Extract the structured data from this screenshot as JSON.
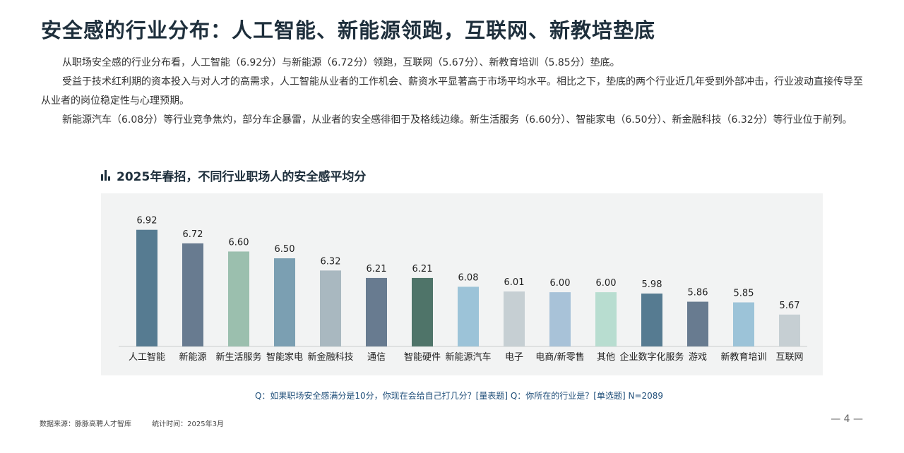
{
  "title": "安全感的行业分布：人工智能、新能源领跑，互联网、新教培垫底",
  "paragraphs": [
    "从职场安全感的行业分布看，人工智能（6.92分）与新能源（6.72分）领跑，互联网（5.67分）、新教育培训（5.85分）垫底。",
    "受益于技术红利期的资本投入与对人才的高需求，人工智能从业者的工作机会、薪资水平显著高于市场平均水平。相比之下，垫底的两个行业近几年受到外部冲击，行业波动直接传导至从业者的岗位稳定性与心理预期。",
    "新能源汽车（6.08分）等行业竞争焦灼，部分车企暴雷，从业者的安全感徘徊于及格线边缘。新生活服务（6.60分）、智能家电（6.50分）、新金融科技（6.32分）等行业位于前列。"
  ],
  "chart_title": "2025年春招，不同行业职场人的安全感平均分",
  "question": "Q：如果职场安全感满分是10分，你现在会给自己打几分？[量表题]     Q：你所在的行业是？[单选题]     N=2089",
  "footer": {
    "source": "数据来源：脉脉高聘人才智库",
    "time": "统计时间：2025年3月"
  },
  "page_number": "— 4 —",
  "chart_data": {
    "type": "bar",
    "title": "2025年春招，不同行业职场人的安全感平均分",
    "categories": [
      "人工智能",
      "新能源",
      "新生活服务",
      "智能家电",
      "新金融科技",
      "通信",
      "智能硬件",
      "新能源汽车",
      "电子",
      "电商/新零售",
      "其他",
      "企业数字化服务",
      "游戏",
      "新教育培训",
      "互联网"
    ],
    "values": [
      6.92,
      6.72,
      6.6,
      6.5,
      6.32,
      6.21,
      6.21,
      6.08,
      6.01,
      6.0,
      6.0,
      5.98,
      5.86,
      5.85,
      5.67
    ],
    "value_labels": [
      "6.92",
      "6.72",
      "6.60",
      "6.50",
      "6.32",
      "6.21",
      "6.21",
      "6.08",
      "6.01",
      "6.00",
      "6.00",
      "5.98",
      "5.86",
      "5.85",
      "5.67"
    ],
    "colors": [
      "#567b91",
      "#687b90",
      "#9bbfae",
      "#7b9fb2",
      "#a9b8c0",
      "#687b90",
      "#4f7469",
      "#9cc3d8",
      "#c6cfd3",
      "#a8c2d8",
      "#b8ddd0",
      "#567b91",
      "#687b90",
      "#9cc3d8",
      "#c6cfd3"
    ],
    "ylim": [
      5.2,
      7.0
    ],
    "grid": false,
    "legend": "none"
  }
}
